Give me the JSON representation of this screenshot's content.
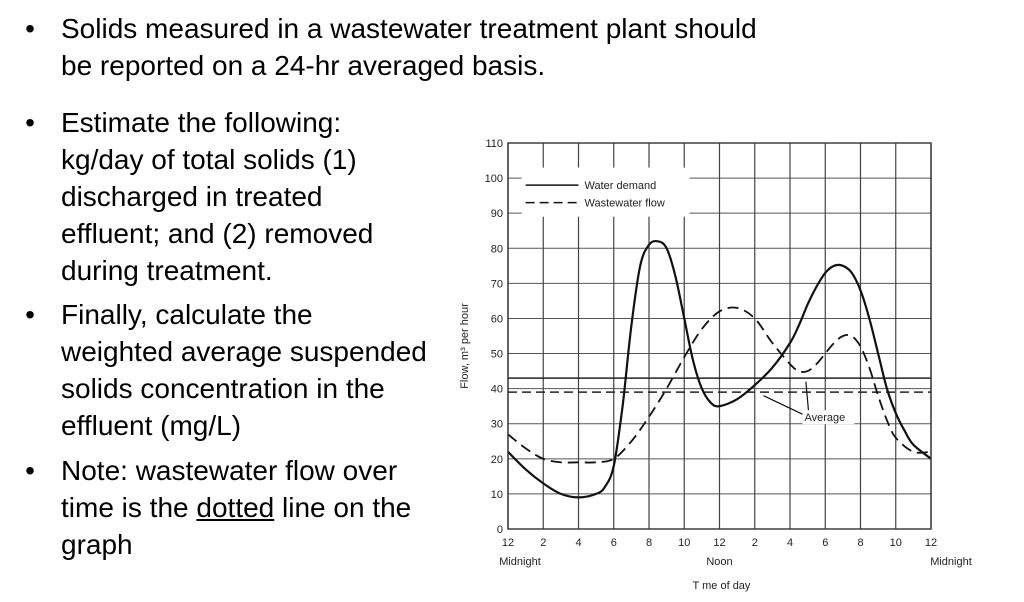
{
  "bullets": {
    "marker": "•",
    "top": "Solids measured in a wastewater treatment plant should\nbe reported on a 24-hr averaged basis.",
    "estimate": "Estimate the following:\nkg/day of total solids (1)\ndischarged in treated\neffluent; and (2) removed\nduring treatment.",
    "finally": "Finally, calculate the\nweighted average suspended\nsolids concentration in the\neffluent (mg/L)",
    "note_before": "Note: wastewater flow over\ntime is the ",
    "note_underlined": "dotted",
    "note_after": " line on the\ngraph"
  },
  "chart_data": {
    "type": "line",
    "ylabel": "Flow, m³ per hour",
    "xlabel": "T me of day",
    "ylim": [
      0,
      110
    ],
    "xlim": [
      0,
      24
    ],
    "y_ticks": [
      0,
      10,
      20,
      30,
      40,
      50,
      60,
      70,
      80,
      90,
      100,
      110
    ],
    "x_ticks": [
      0,
      2,
      4,
      6,
      8,
      10,
      12,
      14,
      16,
      18,
      20,
      22,
      24
    ],
    "x_tick_labels": [
      "12",
      "2",
      "4",
      "6",
      "8",
      "10",
      "12",
      "2",
      "4",
      "6",
      "8",
      "10",
      "12"
    ],
    "x_sublabels": [
      {
        "x": 0,
        "label": "Midnight"
      },
      {
        "x": 12,
        "label": "Noon"
      },
      {
        "x": 24,
        "label": "Midnight"
      }
    ],
    "grid": true,
    "legend": {
      "position": "top-left",
      "entries": [
        {
          "name": "Water demand",
          "style": "solid"
        },
        {
          "name": "Wastewater flow",
          "style": "dashed"
        }
      ]
    },
    "annotation": "Average",
    "series": [
      {
        "name": "Water demand",
        "style": "solid",
        "x": [
          0,
          1,
          2,
          3,
          4,
          5,
          5.5,
          6,
          6.5,
          7,
          7.5,
          8,
          8.5,
          9,
          9.5,
          10,
          10.5,
          11,
          11.5,
          12,
          13,
          14,
          15,
          16,
          16.5,
          17,
          17.5,
          18,
          18.5,
          19,
          19.5,
          20,
          20.5,
          21,
          21.5,
          22,
          22.5,
          23,
          24
        ],
        "y": [
          22,
          17,
          13,
          10,
          9,
          10,
          12,
          18,
          35,
          58,
          75,
          81,
          82,
          80,
          72,
          60,
          48,
          40,
          36,
          35,
          37,
          41,
          46,
          53,
          58,
          64,
          69,
          73,
          75,
          75,
          73,
          68,
          60,
          50,
          40,
          33,
          28,
          24,
          20
        ]
      },
      {
        "name": "Wastewater flow",
        "style": "dashed",
        "x": [
          0,
          1,
          2,
          3,
          4,
          5,
          6,
          7,
          8,
          9,
          10,
          11,
          12,
          13,
          14,
          15,
          16,
          16.5,
          17,
          17.5,
          18,
          18.5,
          19,
          19.5,
          20,
          20.5,
          21,
          21.5,
          22,
          23,
          24
        ],
        "y": [
          27,
          23,
          20,
          19,
          19,
          19,
          20,
          25,
          32,
          40,
          49,
          57,
          62,
          63,
          60,
          53,
          47,
          45,
          45,
          47,
          50,
          53,
          55,
          55,
          52,
          46,
          38,
          31,
          26,
          22,
          22
        ]
      }
    ],
    "average_lines": [
      {
        "name": "Water demand average",
        "style": "solid",
        "y": 43
      },
      {
        "name": "Wastewater flow average",
        "style": "dashed",
        "y": 39
      }
    ]
  }
}
